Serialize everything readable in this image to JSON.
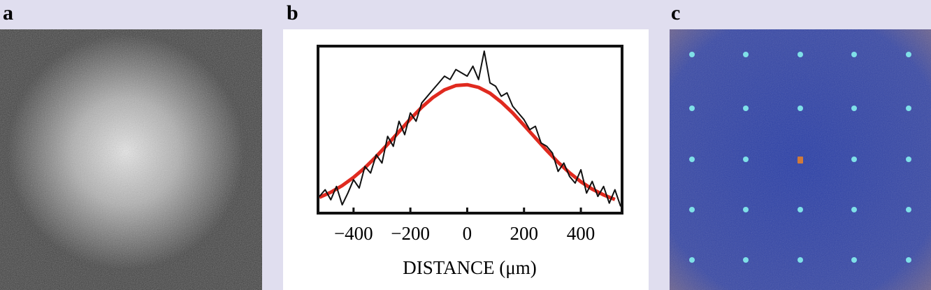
{
  "panels": [
    {
      "label": "a"
    },
    {
      "label": "b"
    },
    {
      "label": "c"
    }
  ],
  "chart_data": {
    "type": "line",
    "xlabel": "DISTANCE (μm)",
    "xlim": [
      -525,
      545
    ],
    "ylim": [
      0,
      1
    ],
    "xticks": [
      {
        "value": -400,
        "label": "−400"
      },
      {
        "value": -200,
        "label": "−200"
      },
      0,
      200,
      400
    ],
    "series": [
      {
        "color": "#111111",
        "x": [
          -520,
          -500,
          -480,
          -460,
          -440,
          -420,
          -400,
          -380,
          -360,
          -340,
          -320,
          -300,
          -280,
          -260,
          -240,
          -220,
          -200,
          -180,
          -160,
          -140,
          -120,
          -100,
          -80,
          -60,
          -40,
          -20,
          0,
          20,
          40,
          60,
          80,
          100,
          120,
          140,
          160,
          180,
          200,
          220,
          240,
          260,
          280,
          300,
          320,
          340,
          360,
          380,
          400,
          420,
          440,
          460,
          480,
          500,
          520,
          540
        ],
        "values": [
          0.1,
          0.14,
          0.08,
          0.16,
          0.05,
          0.12,
          0.2,
          0.15,
          0.28,
          0.24,
          0.35,
          0.3,
          0.46,
          0.4,
          0.55,
          0.47,
          0.6,
          0.55,
          0.66,
          0.7,
          0.74,
          0.78,
          0.82,
          0.8,
          0.86,
          0.84,
          0.82,
          0.88,
          0.8,
          0.97,
          0.78,
          0.76,
          0.7,
          0.72,
          0.64,
          0.6,
          0.56,
          0.5,
          0.52,
          0.42,
          0.4,
          0.36,
          0.25,
          0.3,
          0.22,
          0.18,
          0.26,
          0.12,
          0.19,
          0.1,
          0.16,
          0.06,
          0.14,
          0.04
        ]
      },
      {
        "color": "#e02a1f",
        "x": [
          -520,
          -480,
          -440,
          -400,
          -360,
          -320,
          -280,
          -240,
          -200,
          -160,
          -120,
          -80,
          -40,
          0,
          40,
          80,
          120,
          160,
          200,
          240,
          280,
          320,
          360,
          400,
          440,
          480,
          520
        ],
        "values": [
          0.094,
          0.125,
          0.165,
          0.214,
          0.272,
          0.339,
          0.412,
          0.488,
          0.564,
          0.634,
          0.693,
          0.738,
          0.764,
          0.769,
          0.753,
          0.718,
          0.665,
          0.6,
          0.526,
          0.45,
          0.375,
          0.304,
          0.242,
          0.188,
          0.144,
          0.109,
          0.082
        ]
      }
    ]
  }
}
